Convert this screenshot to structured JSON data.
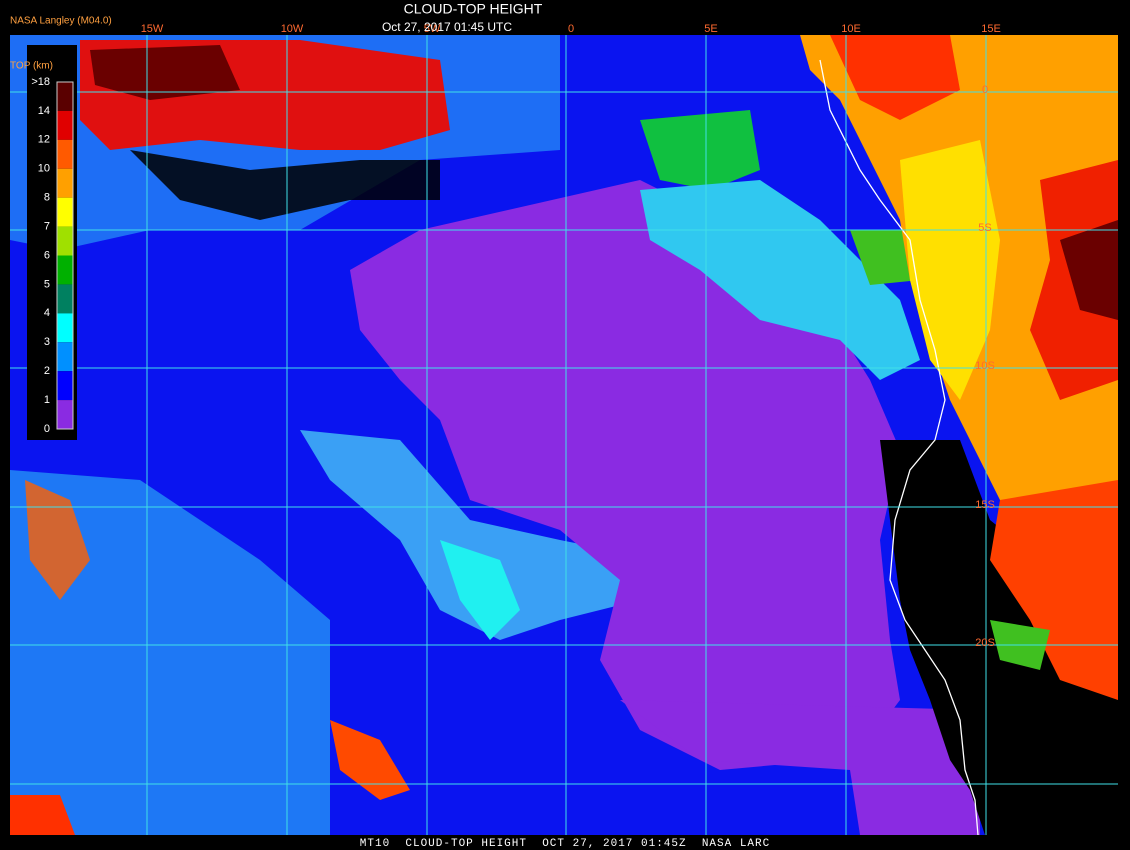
{
  "header": {
    "title": "CLOUD-TOP HEIGHT",
    "timestamp": "Oct 27, 2017 01:45 UTC",
    "source": "NASA Langley (M04.0)"
  },
  "legend": {
    "title": "TOP (km)",
    "labels": [
      ">18",
      "14",
      "12",
      "10",
      "8",
      "7",
      "6",
      "5",
      "4",
      "3",
      "2",
      "1",
      "0"
    ]
  },
  "map": {
    "longitude_labels": [
      "15W",
      "10W",
      "5W",
      "0",
      "5E",
      "10E",
      "15E"
    ],
    "latitude_labels": [
      "0",
      "5S",
      "10S",
      "15S",
      "20S"
    ]
  },
  "footer": "MT10  CLOUD-TOP HEIGHT  OCT 27, 2017 01:45Z  NASA LARC"
}
